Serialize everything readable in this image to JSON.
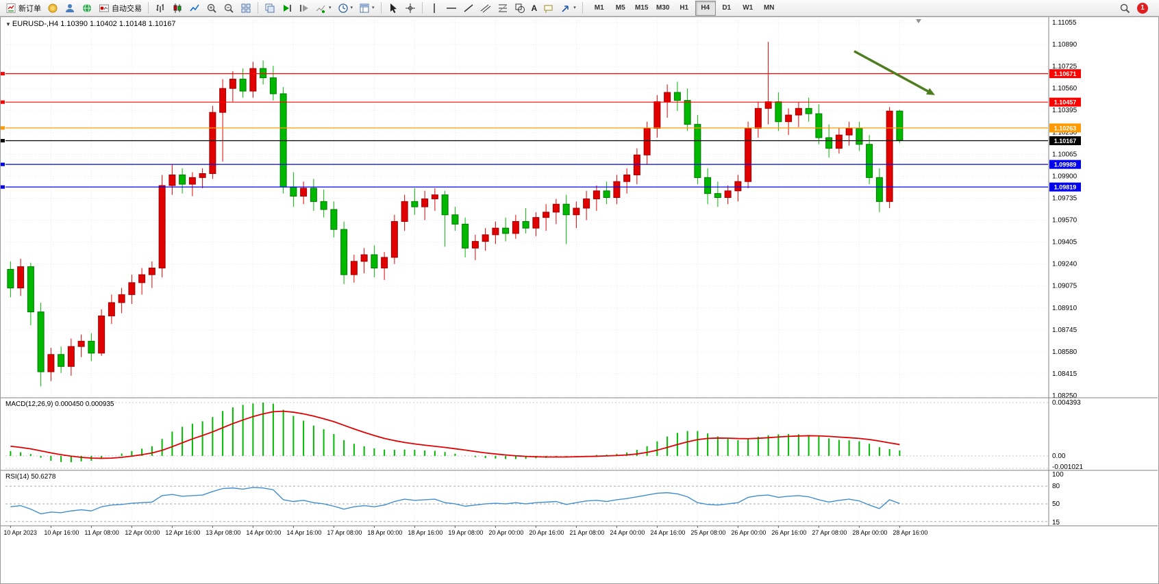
{
  "toolbar": {
    "new_order": "新订单",
    "auto_trading": "自动交易",
    "timeframes": [
      "M1",
      "M5",
      "M15",
      "M30",
      "H1",
      "H4",
      "D1",
      "W1",
      "MN"
    ],
    "active_timeframe": "H4",
    "notification_count": "1"
  },
  "icons": {
    "symbol_dropdown": "▼",
    "caret": "▾",
    "text_tool": "A"
  },
  "chart": {
    "symbol_label": "EURUSD-,H4",
    "ohlc_label": "1.10390 1.10402 1.10148 1.10167"
  },
  "chart_data": [
    {
      "type": "candlestick",
      "title": "EURUSD-,H4",
      "symbol": "EURUSD-",
      "timeframe": "H4",
      "current_open": "1.10390",
      "current_high": "1.10402",
      "current_low": "1.10148",
      "current_close": "1.10167",
      "up_color": "#e00000",
      "down_color": "#00b800",
      "ylim": [
        1.0825,
        1.11055
      ],
      "y_ticks": [
        "1.11055",
        "1.10890",
        "1.10725",
        "1.10560",
        "1.10395",
        "1.10230",
        "1.10065",
        "1.09900",
        "1.09735",
        "1.09570",
        "1.09405",
        "1.09240",
        "1.09075",
        "1.08910",
        "1.08745",
        "1.08580",
        "1.08415",
        "1.08250"
      ],
      "x_labels": [
        "10 Apr 2023",
        "10 Apr 16:00",
        "11 Apr 08:00",
        "12 Apr 00:00",
        "12 Apr 16:00",
        "13 Apr 08:00",
        "14 Apr 00:00",
        "14 Apr 16:00",
        "17 Apr 08:00",
        "18 Apr 00:00",
        "18 Apr 16:00",
        "19 Apr 08:00",
        "20 Apr 00:00",
        "20 Apr 16:00",
        "21 Apr 08:00",
        "24 Apr 00:00",
        "24 Apr 16:00",
        "25 Apr 08:00",
        "26 Apr 00:00",
        "26 Apr 16:00",
        "27 Apr 08:00",
        "28 Apr 00:00",
        "28 Apr 16:00"
      ],
      "candles": [
        [
          1.092,
          1.0926,
          1.0899,
          1.0906
        ],
        [
          1.0906,
          1.0928,
          1.09,
          1.0922
        ],
        [
          1.0922,
          1.0925,
          1.0878,
          1.0888
        ],
        [
          1.0888,
          1.0895,
          1.0832,
          1.0843
        ],
        [
          1.0843,
          1.0861,
          1.0836,
          1.0856
        ],
        [
          1.0856,
          1.0862,
          1.0842,
          1.0847
        ],
        [
          1.0847,
          1.0868,
          1.084,
          1.0862
        ],
        [
          1.0862,
          1.0871,
          1.0854,
          1.0866
        ],
        [
          1.0866,
          1.0872,
          1.0851,
          1.0857
        ],
        [
          1.0857,
          1.089,
          1.0855,
          1.0885
        ],
        [
          1.0885,
          1.0901,
          1.0879,
          1.0895
        ],
        [
          1.0895,
          1.0906,
          1.0887,
          1.0901
        ],
        [
          1.0901,
          1.0916,
          1.0894,
          1.091
        ],
        [
          1.091,
          1.0921,
          1.0901,
          1.0916
        ],
        [
          1.0916,
          1.0926,
          1.0906,
          1.0921
        ],
        [
          1.0921,
          1.0991,
          1.0914,
          1.0983
        ],
        [
          1.0983,
          1.0999,
          1.0976,
          1.0991
        ],
        [
          1.0991,
          1.0996,
          1.0977,
          1.0984
        ],
        [
          1.0984,
          1.0993,
          1.0975,
          1.0989
        ],
        [
          1.0989,
          1.0996,
          1.0981,
          1.0992
        ],
        [
          1.0992,
          1.1043,
          1.0988,
          1.1038
        ],
        [
          1.1038,
          1.1063,
          1.1001,
          1.1056
        ],
        [
          1.1056,
          1.1069,
          1.1046,
          1.1063
        ],
        [
          1.1063,
          1.1071,
          1.1049,
          1.1054
        ],
        [
          1.1054,
          1.1076,
          1.1049,
          1.1071
        ],
        [
          1.1071,
          1.1077,
          1.1059,
          1.1064
        ],
        [
          1.1064,
          1.1073,
          1.1047,
          1.1052
        ],
        [
          1.1052,
          1.1057,
          1.0977,
          1.0982
        ],
        [
          1.0982,
          1.0993,
          1.0967,
          1.0975
        ],
        [
          1.0975,
          1.0986,
          1.0969,
          1.0981
        ],
        [
          1.0981,
          1.0988,
          1.0964,
          1.0971
        ],
        [
          1.0971,
          1.098,
          1.0959,
          1.0965
        ],
        [
          1.0965,
          1.0971,
          1.0944,
          1.095
        ],
        [
          1.095,
          1.0956,
          1.0909,
          1.0916
        ],
        [
          1.0916,
          1.0931,
          1.091,
          1.0926
        ],
        [
          1.0926,
          1.0936,
          1.0917,
          1.0931
        ],
        [
          1.0931,
          1.0938,
          1.0914,
          1.0921
        ],
        [
          1.0921,
          1.0933,
          1.0912,
          1.0929
        ],
        [
          1.0929,
          1.0961,
          1.0924,
          1.0956
        ],
        [
          1.0956,
          1.0976,
          1.0949,
          1.0971
        ],
        [
          1.0971,
          1.0981,
          1.0961,
          1.0967
        ],
        [
          1.0967,
          1.0979,
          1.0957,
          1.0973
        ],
        [
          1.0973,
          1.0981,
          1.0964,
          1.0976
        ],
        [
          1.0976,
          1.0979,
          1.0937,
          1.0961
        ],
        [
          1.0961,
          1.0967,
          1.0949,
          1.0954
        ],
        [
          1.0954,
          1.0959,
          1.0929,
          1.0936
        ],
        [
          1.0936,
          1.0946,
          1.0927,
          1.0941
        ],
        [
          1.0941,
          1.0951,
          1.0934,
          1.0946
        ],
        [
          1.0946,
          1.0956,
          1.0939,
          1.0951
        ],
        [
          1.0951,
          1.0959,
          1.0941,
          1.0947
        ],
        [
          1.0947,
          1.0961,
          1.0943,
          1.0956
        ],
        [
          1.0956,
          1.0966,
          1.0947,
          1.0951
        ],
        [
          1.0951,
          1.0963,
          1.0945,
          1.0959
        ],
        [
          1.0959,
          1.0969,
          1.0949,
          1.0963
        ],
        [
          1.0963,
          1.0973,
          1.0954,
          1.0969
        ],
        [
          1.0969,
          1.0976,
          1.0939,
          1.0961
        ],
        [
          1.0961,
          1.0971,
          1.0951,
          1.0966
        ],
        [
          1.0966,
          1.0979,
          1.0957,
          1.0973
        ],
        [
          1.0973,
          1.0983,
          1.0964,
          1.0979
        ],
        [
          1.0979,
          1.0986,
          1.0969,
          1.0974
        ],
        [
          1.0974,
          1.0991,
          1.0969,
          1.0986
        ],
        [
          1.0986,
          1.0996,
          1.0977,
          1.0991
        ],
        [
          1.0991,
          1.1011,
          1.0984,
          1.1006
        ],
        [
          1.1006,
          1.1031,
          1.0999,
          1.1026
        ],
        [
          1.1026,
          1.1051,
          1.1019,
          1.1046
        ],
        [
          1.1046,
          1.1059,
          1.1034,
          1.1053
        ],
        [
          1.1053,
          1.1061,
          1.1039,
          1.1047
        ],
        [
          1.1047,
          1.1056,
          1.1024,
          1.1029
        ],
        [
          1.1029,
          1.1036,
          1.0984,
          1.0989
        ],
        [
          1.0989,
          1.0996,
          1.0969,
          1.0977
        ],
        [
          1.0977,
          1.0986,
          1.0967,
          1.0974
        ],
        [
          1.0974,
          1.0983,
          1.0969,
          1.0979
        ],
        [
          1.0979,
          1.0991,
          1.0971,
          1.0986
        ],
        [
          1.0986,
          1.1031,
          1.0981,
          1.1026
        ],
        [
          1.1026,
          1.1046,
          1.1019,
          1.1041
        ],
        [
          1.1041,
          1.1091,
          1.1029,
          1.1046
        ],
        [
          1.1046,
          1.1053,
          1.1024,
          1.1031
        ],
        [
          1.1031,
          1.1041,
          1.1021,
          1.1036
        ],
        [
          1.1036,
          1.1046,
          1.1027,
          1.1041
        ],
        [
          1.1041,
          1.1049,
          1.1031,
          1.1037
        ],
        [
          1.1037,
          1.1044,
          1.1014,
          1.1019
        ],
        [
          1.1019,
          1.1029,
          1.1004,
          1.1011
        ],
        [
          1.1011,
          1.1026,
          1.1007,
          1.1021
        ],
        [
          1.1021,
          1.1031,
          1.1013,
          1.1026
        ],
        [
          1.1026,
          1.1031,
          1.1009,
          1.1014
        ],
        [
          1.1014,
          1.1021,
          1.0984,
          1.0989
        ],
        [
          1.0989,
          1.0996,
          1.0963,
          1.0971
        ],
        [
          1.0971,
          1.1042,
          1.0966,
          1.1039
        ],
        [
          1.1039,
          1.104,
          1.1015,
          1.1017
        ]
      ],
      "hlines": [
        {
          "price": 1.10671,
          "label": "1.10671",
          "color": "#ff0000",
          "kind": "resistance"
        },
        {
          "price": 1.10457,
          "label": "1.10457",
          "color": "#ff0000",
          "kind": "resistance"
        },
        {
          "price": 1.10263,
          "label": "1.10263",
          "color": "#ff9900",
          "kind": "level"
        },
        {
          "price": 1.10167,
          "label": "1.10167",
          "color": "#000000",
          "kind": "current-price"
        },
        {
          "price": 1.09989,
          "label": "1.09989",
          "color": "#0000ee",
          "kind": "support"
        },
        {
          "price": 1.09819,
          "label": "1.09819",
          "color": "#0000ee",
          "kind": "support"
        }
      ],
      "arrow": {
        "from_bar": 83.5,
        "from_price": 1.1084,
        "to_bar": 91.5,
        "to_price": 1.1051,
        "color": "#4e7d1f"
      }
    },
    {
      "type": "macd",
      "title": "MACD(12,26,9)",
      "values_text": "0.000450 0.000935",
      "ylim": [
        -0.001021,
        0.004393
      ],
      "y_ticks": [
        0.004393,
        0.0,
        -0.001021
      ],
      "y_tick_labels": [
        "0.004393",
        "0.00",
        "-0.001021"
      ],
      "histogram_color": "#00b800",
      "signal_color": "#e00000",
      "histogram": [
        0.0004,
        0.0003,
        0.00015,
        -0.00015,
        -0.0004,
        -0.0005,
        -0.00052,
        -0.00045,
        -0.0004,
        -0.0002,
        0.0,
        0.0002,
        0.0004,
        0.0006,
        0.0008,
        0.0014,
        0.002,
        0.0024,
        0.00265,
        0.00285,
        0.0032,
        0.0037,
        0.004,
        0.0042,
        0.00432,
        0.00439,
        0.0043,
        0.0038,
        0.0033,
        0.0029,
        0.0025,
        0.0022,
        0.0018,
        0.0013,
        0.001,
        0.0008,
        0.00062,
        0.00052,
        0.0005,
        0.00052,
        0.0005,
        0.00045,
        0.00042,
        0.00032,
        0.00018,
        2e-05,
        -0.0001,
        -0.00018,
        -0.00022,
        -0.00026,
        -0.00026,
        -0.00024,
        -0.0002,
        -0.00016,
        -0.0001,
        -8e-05,
        -2e-05,
        2e-05,
        8e-05,
        0.0001,
        0.00016,
        0.00028,
        0.0005,
        0.0008,
        0.0012,
        0.0016,
        0.0019,
        0.00205,
        0.00205,
        0.00185,
        0.0016,
        0.0014,
        0.0013,
        0.0014,
        0.00158,
        0.0017,
        0.00178,
        0.0018,
        0.00178,
        0.00172,
        0.0016,
        0.00144,
        0.00132,
        0.00128,
        0.0012,
        0.001,
        0.00072,
        0.00056,
        0.00045
      ],
      "signal": [
        0.0008,
        0.0007,
        0.00058,
        0.00042,
        0.00025,
        0.0001,
        -2e-05,
        -0.00012,
        -0.00018,
        -0.0002,
        -0.00018,
        -0.00012,
        -2e-05,
        0.0001,
        0.00024,
        0.00046,
        0.00076,
        0.00108,
        0.0014,
        0.00168,
        0.00198,
        0.00232,
        0.00266,
        0.00296,
        0.00324,
        0.00346,
        0.00364,
        0.00368,
        0.0036,
        0.00346,
        0.00328,
        0.00306,
        0.00282,
        0.00252,
        0.00222,
        0.00194,
        0.00168,
        0.00144,
        0.00126,
        0.00111,
        0.00099,
        0.00088,
        0.00079,
        0.0007,
        0.00059,
        0.00048,
        0.00036,
        0.00025,
        0.00016,
        8e-05,
        1e-05,
        -4e-05,
        -7e-05,
        -9e-05,
        -9e-05,
        -9e-05,
        -7e-05,
        -5e-05,
        -3e-05,
        0.0,
        3e-05,
        8e-05,
        0.00016,
        0.00029,
        0.00047,
        0.0007,
        0.00094,
        0.00116,
        0.00134,
        0.00144,
        0.00147,
        0.00146,
        0.00143,
        0.00142,
        0.00145,
        0.0015,
        0.00156,
        0.00161,
        0.00164,
        0.00166,
        0.00165,
        0.00161,
        0.00155,
        0.0015,
        0.00144,
        0.00135,
        0.00122,
        0.00107,
        0.000935
      ]
    },
    {
      "type": "rsi",
      "title": "RSI(14)",
      "value_text": "50.6278",
      "ylim": [
        15,
        100
      ],
      "y_ticks": [
        100,
        80,
        50,
        15
      ],
      "y_tick_labels": [
        "100",
        "80",
        "50",
        "15"
      ],
      "levels": [
        80,
        50,
        20
      ],
      "line_color": "#3e8ed0",
      "values": [
        45,
        47,
        41,
        33,
        36,
        35,
        38,
        40,
        38,
        45,
        48,
        49,
        51,
        52,
        53,
        64,
        66,
        63,
        64,
        65,
        71,
        76,
        77,
        75,
        78,
        77,
        74,
        57,
        54,
        56,
        52,
        50,
        46,
        41,
        45,
        47,
        45,
        48,
        54,
        58,
        56,
        57,
        58,
        52,
        50,
        46,
        48,
        50,
        51,
        50,
        52,
        50,
        52,
        53,
        54,
        49,
        52,
        55,
        56,
        54,
        57,
        59,
        62,
        65,
        68,
        69,
        67,
        62,
        52,
        49,
        48,
        50,
        52,
        61,
        64,
        65,
        61,
        63,
        64,
        62,
        57,
        53,
        56,
        58,
        55,
        48,
        42,
        57,
        50.6278
      ]
    }
  ]
}
